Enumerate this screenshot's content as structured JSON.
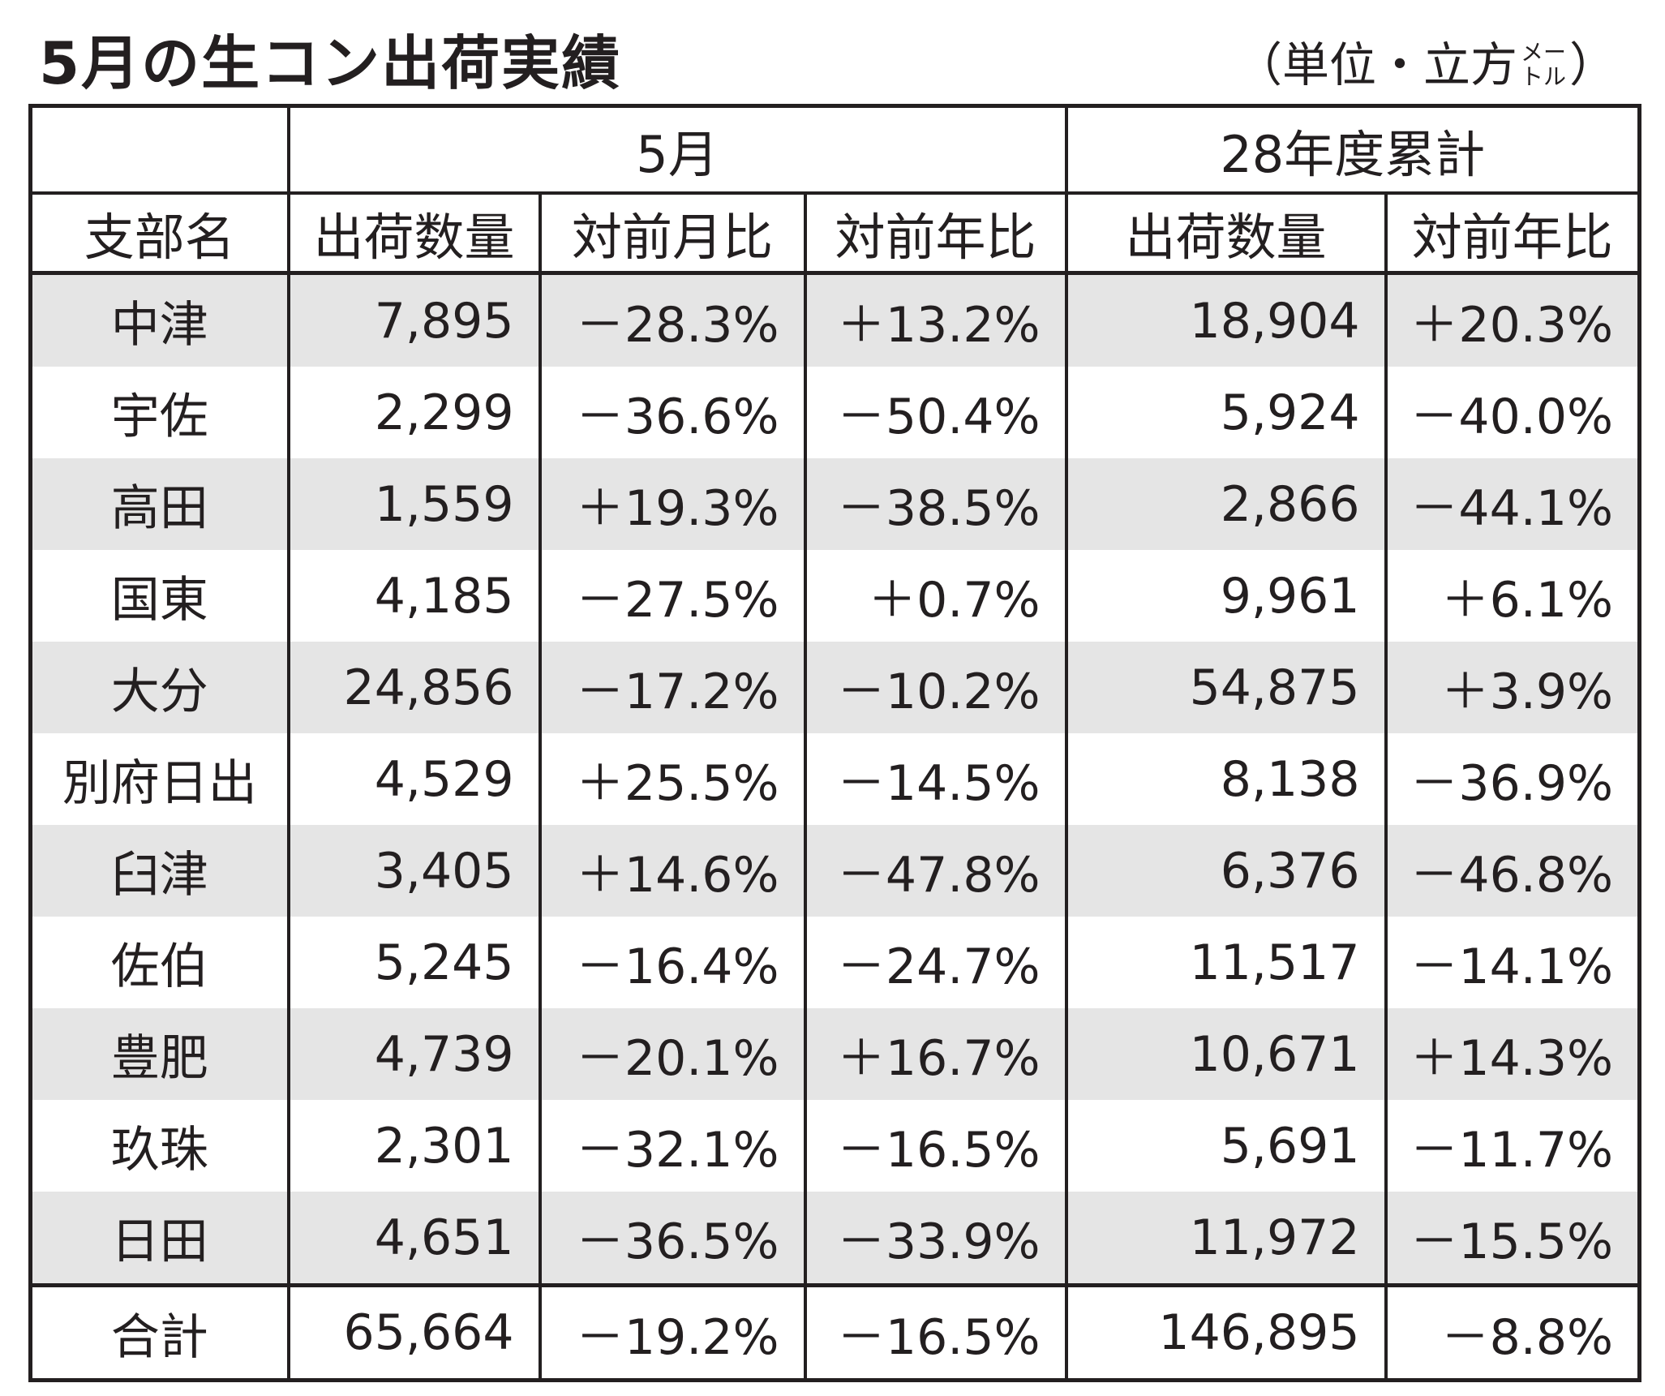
{
  "title": "5月の生コン出荷実績",
  "unit": {
    "open": "（単位・立方",
    "small_top": "メー",
    "small_bottom": "トル",
    "close": "）"
  },
  "header": {
    "group_may": "5月",
    "group_cumulative": "28年度累計",
    "col_branch": "支部名",
    "col_shipment_may": "出荷数量",
    "col_mom": "対前月比",
    "col_yoy_may": "対前年比",
    "col_shipment_cum": "出荷数量",
    "col_yoy_cum": "対前年比"
  },
  "rows": [
    {
      "branch": "中津",
      "shipment": "7,895",
      "mom": "－28.3%",
      "yoy": "＋13.2%",
      "cum_shipment": "18,904",
      "cum_yoy": "＋20.3%"
    },
    {
      "branch": "宇佐",
      "shipment": "2,299",
      "mom": "－36.6%",
      "yoy": "－50.4%",
      "cum_shipment": "5,924",
      "cum_yoy": "－40.0%"
    },
    {
      "branch": "高田",
      "shipment": "1,559",
      "mom": "＋19.3%",
      "yoy": "－38.5%",
      "cum_shipment": "2,866",
      "cum_yoy": "－44.1%"
    },
    {
      "branch": "国東",
      "shipment": "4,185",
      "mom": "－27.5%",
      "yoy": "＋0.7%",
      "cum_shipment": "9,961",
      "cum_yoy": "＋6.1%"
    },
    {
      "branch": "大分",
      "shipment": "24,856",
      "mom": "－17.2%",
      "yoy": "－10.2%",
      "cum_shipment": "54,875",
      "cum_yoy": "＋3.9%"
    },
    {
      "branch": "別府日出",
      "shipment": "4,529",
      "mom": "＋25.5%",
      "yoy": "－14.5%",
      "cum_shipment": "8,138",
      "cum_yoy": "－36.9%"
    },
    {
      "branch": "臼津",
      "shipment": "3,405",
      "mom": "＋14.6%",
      "yoy": "－47.8%",
      "cum_shipment": "6,376",
      "cum_yoy": "－46.8%"
    },
    {
      "branch": "佐伯",
      "shipment": "5,245",
      "mom": "－16.4%",
      "yoy": "－24.7%",
      "cum_shipment": "11,517",
      "cum_yoy": "－14.1%"
    },
    {
      "branch": "豊肥",
      "shipment": "4,739",
      "mom": "－20.1%",
      "yoy": "＋16.7%",
      "cum_shipment": "10,671",
      "cum_yoy": "＋14.3%"
    },
    {
      "branch": "玖珠",
      "shipment": "2,301",
      "mom": "－32.1%",
      "yoy": "－16.5%",
      "cum_shipment": "5,691",
      "cum_yoy": "－11.7%"
    },
    {
      "branch": "日田",
      "shipment": "4,651",
      "mom": "－36.5%",
      "yoy": "－33.9%",
      "cum_shipment": "11,972",
      "cum_yoy": "－15.5%"
    }
  ],
  "total": {
    "branch": "合計",
    "shipment": "65,664",
    "mom": "－19.2%",
    "yoy": "－16.5%",
    "cum_shipment": "146,895",
    "cum_yoy": "－8.8%"
  },
  "colors": {
    "text": "#231f20",
    "row_shade": "#e5e5e5",
    "background": "#ffffff"
  }
}
